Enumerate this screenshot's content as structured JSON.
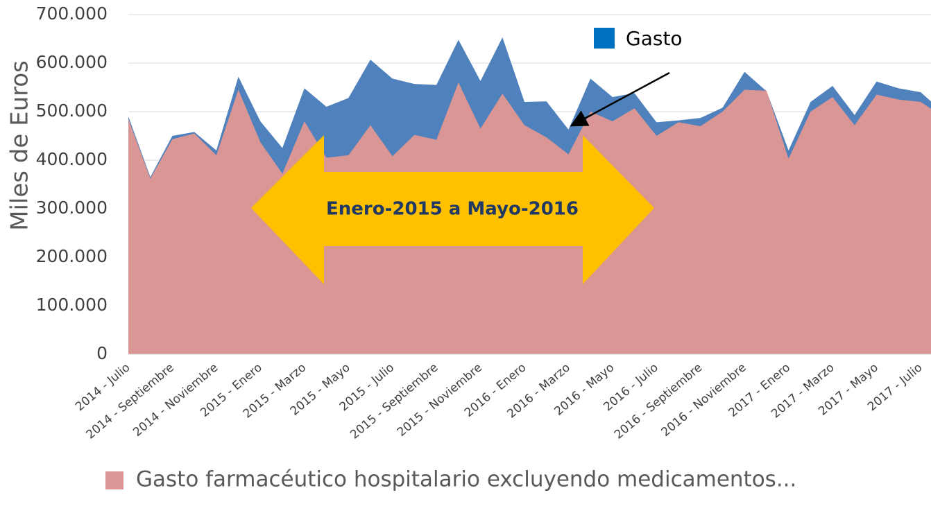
{
  "chart_data": {
    "type": "area",
    "y_label": "Miles de Euros",
    "categories": [
      "2014 - Julio",
      null,
      "2014 - Septiembre",
      null,
      "2014 - Noviembre",
      null,
      "2015 - Enero",
      null,
      "2015 - Marzo",
      null,
      "2015 - Mayo",
      null,
      "2015 - Julio",
      null,
      "2015 - Septiembre",
      null,
      "2015 - Noviembre",
      null,
      "2016 - Enero",
      null,
      "2016 - Marzo",
      null,
      "2016 - Mayo",
      null,
      "2016 - Julio",
      null,
      "2016 - Septiembre",
      null,
      "2016 - Noviembre",
      null,
      "2017 - Enero",
      null,
      "2017 - Marzo",
      null,
      "2017 - Mayo",
      null,
      "2017 - Julio",
      null
    ],
    "series": [
      {
        "name": "Gasto",
        "color": "#4f81bd",
        "legend_color": "#0070c0",
        "values": [
          490,
          365,
          450,
          458,
          420,
          572,
          480,
          425,
          548,
          510,
          528,
          607,
          568,
          557,
          555,
          648,
          563,
          653,
          520,
          521,
          463,
          568,
          530,
          538,
          478,
          482,
          487,
          508,
          582,
          542,
          420,
          520,
          553,
          493,
          562,
          548,
          540,
          500
        ]
      },
      {
        "name": "Gasto farmacéutico hospitalario excluyendo  medicamentos...",
        "color": "#d99694",
        "values": [
          485,
          362,
          443,
          455,
          410,
          545,
          437,
          372,
          480,
          405,
          410,
          472,
          408,
          452,
          442,
          560,
          465,
          537,
          472,
          447,
          412,
          500,
          480,
          507,
          450,
          478,
          470,
          500,
          545,
          543,
          403,
          500,
          530,
          472,
          535,
          525,
          520,
          490
        ]
      }
    ],
    "ylim": [
      0,
      700
    ],
    "yticks": [
      0,
      {
        "value": 100,
        "label": "100.000"
      },
      {
        "value": 200,
        "label": "200.000"
      },
      {
        "value": 300,
        "label": "300.000"
      },
      {
        "value": 400,
        "label": "400.000"
      },
      {
        "value": 500,
        "label": "500.000"
      },
      {
        "value": 600,
        "label": "600.000"
      },
      {
        "value": 700,
        "label": "700.000"
      }
    ],
    "grid": true,
    "annotation": "Enero-2015 a Mayo-2016"
  }
}
